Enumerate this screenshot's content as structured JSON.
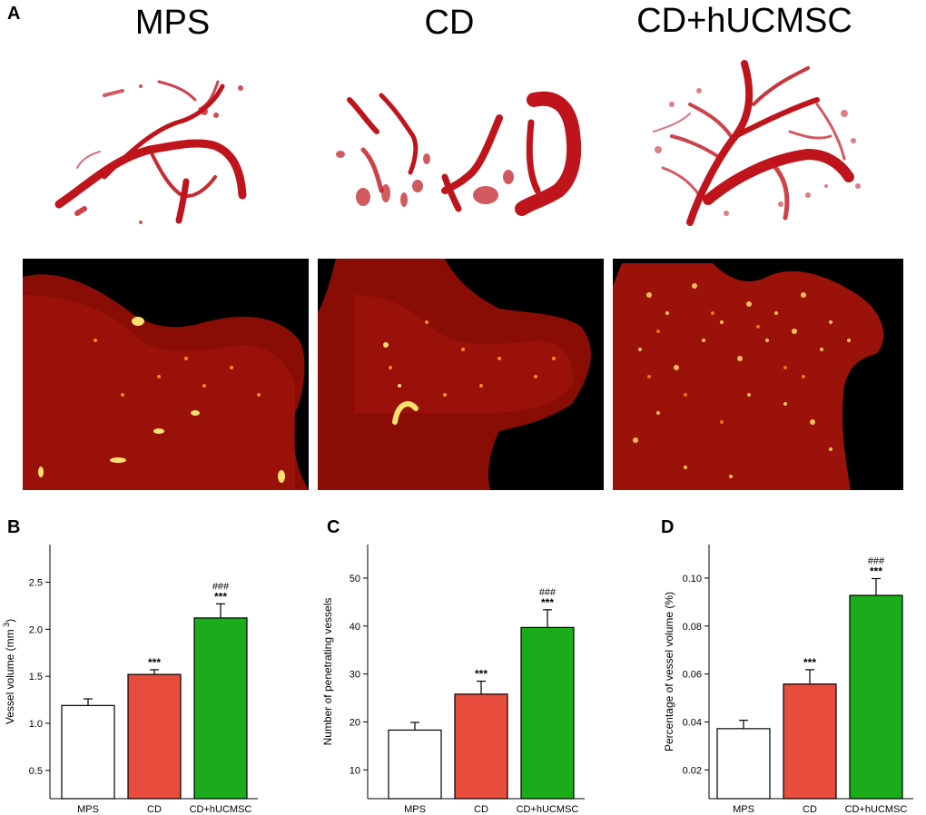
{
  "panel_a": {
    "letter": "A",
    "group_titles": [
      "MPS",
      "CD",
      "CD+hUCMSC"
    ],
    "images_3d": [
      "3d-vessel-render",
      "3d-vessel-render",
      "3d-vessel-render"
    ],
    "images_section": [
      "fluorescence-section",
      "fluorescence-section",
      "fluorescence-section"
    ],
    "vessel_color": "#c0141c"
  },
  "chart_data": [
    {
      "type": "bar",
      "panel": "B",
      "categories": [
        "MPS",
        "CD",
        "CD+hUCMSC"
      ],
      "values": [
        1.19,
        1.52,
        2.12
      ],
      "errors": [
        0.07,
        0.05,
        0.15
      ],
      "significance": [
        "",
        "***",
        "***"
      ],
      "significance2": [
        "",
        "",
        "###"
      ],
      "ylabel_main": "Vessel volume (mm",
      "ylabel_sup": "3",
      "ylabel_tail": ")",
      "ylim": [
        0.2,
        2.9
      ],
      "yticks": [
        "0.5",
        "1.0",
        "1.5",
        "2.0",
        "2.5"
      ],
      "colors": [
        "#ffffff",
        "#e84c3d",
        "#1aac1a"
      ]
    },
    {
      "type": "bar",
      "panel": "C",
      "categories": [
        "MPS",
        "CD",
        "CD+hUCMSC"
      ],
      "values": [
        18.3,
        25.8,
        39.7
      ],
      "errors": [
        1.6,
        2.7,
        3.7
      ],
      "significance": [
        "",
        "***",
        "***"
      ],
      "significance2": [
        "",
        "",
        "###"
      ],
      "ylabel_main": "Number of penetrating vessels",
      "ylabel_sup": "",
      "ylabel_tail": "",
      "ylim": [
        4,
        57
      ],
      "yticks": [
        "10",
        "20",
        "30",
        "40",
        "50"
      ],
      "colors": [
        "#ffffff",
        "#e84c3d",
        "#1aac1a"
      ]
    },
    {
      "type": "bar",
      "panel": "D",
      "categories": [
        "MPS",
        "CD",
        "CD+hUCMSC"
      ],
      "values": [
        0.0372,
        0.0558,
        0.0928
      ],
      "errors": [
        0.0035,
        0.006,
        0.007
      ],
      "significance": [
        "",
        "***",
        "***"
      ],
      "significance2": [
        "",
        "",
        "###"
      ],
      "ylabel_main": "Percentage of vessel volume (%)",
      "ylabel_sup": "",
      "ylabel_tail": "",
      "ylim": [
        0.008,
        0.114
      ],
      "yticks": [
        "0.02",
        "0.04",
        "0.06",
        "0.08",
        "0.10"
      ],
      "colors": [
        "#ffffff",
        "#e84c3d",
        "#1aac1a"
      ]
    }
  ]
}
